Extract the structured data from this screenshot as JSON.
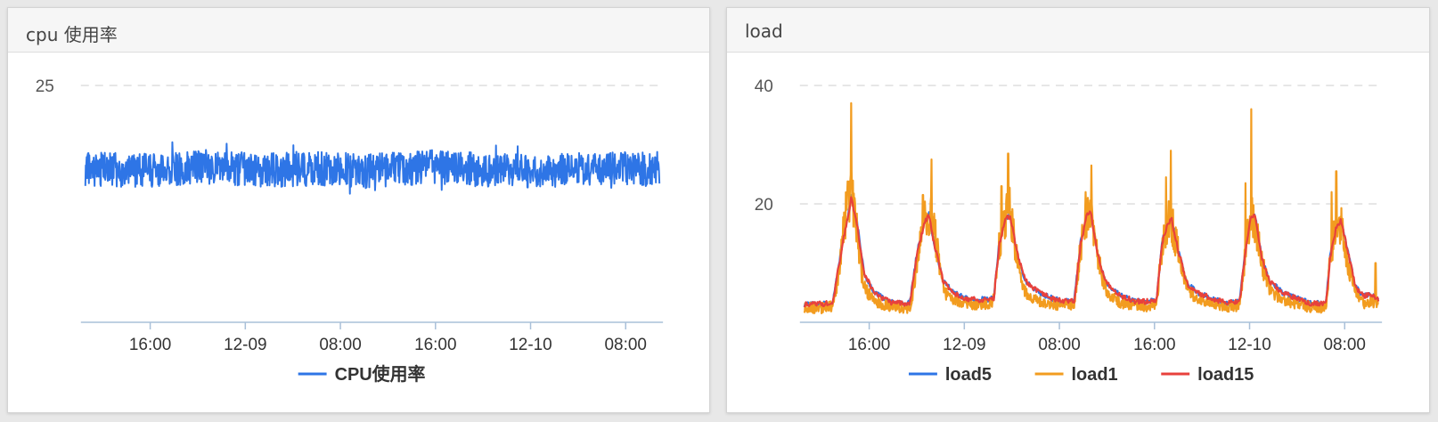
{
  "panels": [
    {
      "title": "cpu 使用率",
      "chart_data": {
        "type": "line",
        "x_ticks": [
          "16:00",
          "12-09",
          "08:00",
          "16:00",
          "12-10",
          "08:00"
        ],
        "y_ticks": [
          25
        ],
        "ylim": [
          0,
          25
        ],
        "grid": "horizontal dashed",
        "legend_position": "bottom",
        "series": [
          {
            "name": "CPU使用率",
            "color": "#2e75e6",
            "noisy": true,
            "baseline": [
              [
                0,
                16.2
              ],
              [
                6,
                16.0
              ],
              [
                12,
                16.3
              ],
              [
                18,
                16.1
              ],
              [
                24,
                16.2
              ],
              [
                30,
                16.0
              ],
              [
                36,
                16.4
              ],
              [
                42,
                16.1
              ],
              [
                48,
                16.0
              ],
              [
                54,
                16.2
              ],
              [
                60,
                16.1
              ]
            ],
            "amplitude": 1.8
          }
        ]
      }
    },
    {
      "title": "load",
      "chart_data": {
        "type": "line",
        "x_ticks": [
          "16:00",
          "12-09",
          "08:00",
          "16:00",
          "12-10",
          "08:00"
        ],
        "y_ticks": [
          20,
          40
        ],
        "ylim": [
          0,
          40
        ],
        "grid": "horizontal dashed",
        "legend_position": "bottom",
        "series": [
          {
            "name": "load5",
            "color": "#2e75e6",
            "points": [
              [
                0,
                3
              ],
              [
                2,
                3.1
              ],
              [
                3,
                3.5
              ],
              [
                4,
                14
              ],
              [
                4.6,
                18
              ],
              [
                4.9,
                21.5
              ],
              [
                5.5,
                17
              ],
              [
                6.3,
                8
              ],
              [
                7.3,
                5
              ],
              [
                8.3,
                4
              ],
              [
                9,
                3.4
              ],
              [
                10,
                3.2
              ],
              [
                11,
                3.2
              ],
              [
                11.8,
                12
              ],
              [
                12.6,
                17.5
              ],
              [
                13,
                18.5
              ],
              [
                13.6,
                13
              ],
              [
                14.5,
                7
              ],
              [
                15.6,
                5
              ],
              [
                17,
                4
              ],
              [
                18,
                3.8
              ],
              [
                19.8,
                4
              ],
              [
                20.4,
                14
              ],
              [
                21,
                17.5
              ],
              [
                21.5,
                18.5
              ],
              [
                22.2,
                12
              ],
              [
                23.1,
                7
              ],
              [
                24.5,
                5
              ],
              [
                26,
                4
              ],
              [
                27,
                3.5
              ],
              [
                28.2,
                3.6
              ],
              [
                28.9,
                14
              ],
              [
                29.5,
                18
              ],
              [
                29.9,
                19
              ],
              [
                30.6,
                12
              ],
              [
                31.4,
                7
              ],
              [
                33,
                4.5
              ],
              [
                34.5,
                3.6
              ],
              [
                36,
                3.5
              ],
              [
                36.8,
                3.6
              ],
              [
                37.4,
                14
              ],
              [
                38,
                17
              ],
              [
                38.4,
                17.5
              ],
              [
                39.1,
                12
              ],
              [
                40,
                6.5
              ],
              [
                41.2,
                5
              ],
              [
                42.5,
                4
              ],
              [
                44,
                3.3
              ],
              [
                45.5,
                3.5
              ],
              [
                46.2,
                14
              ],
              [
                46.7,
                18
              ],
              [
                47.1,
                18
              ],
              [
                47.8,
                11
              ],
              [
                48.6,
                7
              ],
              [
                50,
                5
              ],
              [
                51.5,
                4
              ],
              [
                53,
                3.2
              ],
              [
                54.5,
                3.2
              ],
              [
                55,
                12
              ],
              [
                55.6,
                16.5
              ],
              [
                56.1,
                17.5
              ],
              [
                56.8,
                12
              ],
              [
                57.6,
                6
              ],
              [
                58.4,
                4.5
              ],
              [
                59,
                4.6
              ],
              [
                59.5,
                4.3
              ],
              [
                60,
                4
              ]
            ]
          },
          {
            "name": "load1",
            "color": "#f29c1f",
            "noisy": true,
            "amplitude": 2.6,
            "spikes": [
              [
                4.9,
                37
              ],
              [
                13.3,
                27.5
              ],
              [
                21.3,
                28.5
              ],
              [
                30,
                26.5
              ],
              [
                38.3,
                29
              ],
              [
                46.7,
                36
              ],
              [
                55.6,
                25.5
              ],
              [
                4.4,
                19
              ],
              [
                12.4,
                21.5
              ],
              [
                20.6,
                23
              ],
              [
                29.4,
                22
              ],
              [
                37.8,
                24.5
              ],
              [
                46.1,
                23.5
              ],
              [
                55.1,
                22
              ],
              [
                59.7,
                10
              ]
            ],
            "points": [
              [
                0,
                2.5
              ],
              [
                2,
                2.4
              ],
              [
                3,
                2.8
              ],
              [
                3.6,
                8
              ],
              [
                4.2,
                17
              ],
              [
                4.9,
                23
              ],
              [
                5.5,
                15
              ],
              [
                6.2,
                6
              ],
              [
                7.3,
                3.5
              ],
              [
                8.3,
                3
              ],
              [
                10,
                2.4
              ],
              [
                11.2,
                2.5
              ],
              [
                11.8,
                11
              ],
              [
                12.6,
                17
              ],
              [
                13.3,
                19
              ],
              [
                13.9,
                12
              ],
              [
                14.6,
                5
              ],
              [
                16,
                3.5
              ],
              [
                18,
                3
              ],
              [
                19.7,
                3
              ],
              [
                20.3,
                12
              ],
              [
                21,
                18
              ],
              [
                21.5,
                19
              ],
              [
                22.2,
                11
              ],
              [
                23.1,
                5
              ],
              [
                24.5,
                3.5
              ],
              [
                27,
                2.8
              ],
              [
                28.2,
                2.9
              ],
              [
                28.9,
                13
              ],
              [
                29.6,
                18.5
              ],
              [
                30.1,
                17
              ],
              [
                30.8,
                10
              ],
              [
                31.6,
                5
              ],
              [
                33,
                3.3
              ],
              [
                36,
                2.6
              ],
              [
                36.8,
                2.8
              ],
              [
                37.4,
                13
              ],
              [
                38.2,
                18
              ],
              [
                38.7,
                15
              ],
              [
                39.4,
                9
              ],
              [
                40.2,
                5
              ],
              [
                42,
                3.2
              ],
              [
                44,
                2.6
              ],
              [
                45.5,
                2.8
              ],
              [
                46.2,
                13
              ],
              [
                46.8,
                19
              ],
              [
                47.3,
                15
              ],
              [
                48,
                9
              ],
              [
                48.8,
                5
              ],
              [
                50.5,
                3.4
              ],
              [
                53,
                2.5
              ],
              [
                54.5,
                2.5
              ],
              [
                55,
                11
              ],
              [
                55.6,
                17
              ],
              [
                56.2,
                16
              ],
              [
                56.9,
                9
              ],
              [
                57.7,
                4.5
              ],
              [
                58.5,
                3.2
              ],
              [
                59.3,
                3.5
              ],
              [
                59.8,
                3
              ],
              [
                60,
                2.8
              ]
            ]
          },
          {
            "name": "load15",
            "color": "#e8413c",
            "points": [
              [
                0,
                3
              ],
              [
                2,
                3.1
              ],
              [
                3,
                3.4
              ],
              [
                4,
                13.5
              ],
              [
                4.6,
                18
              ],
              [
                4.9,
                21
              ],
              [
                5.5,
                16.5
              ],
              [
                6.3,
                8
              ],
              [
                7.3,
                5
              ],
              [
                8.3,
                4
              ],
              [
                9,
                3.4
              ],
              [
                10,
                3.2
              ],
              [
                11,
                3.2
              ],
              [
                11.8,
                11.5
              ],
              [
                12.6,
                17
              ],
              [
                13,
                18.2
              ],
              [
                13.6,
                13
              ],
              [
                14.5,
                7
              ],
              [
                15.6,
                5
              ],
              [
                17,
                4
              ],
              [
                18,
                3.8
              ],
              [
                19.8,
                4
              ],
              [
                20.4,
                13.5
              ],
              [
                21,
                17.2
              ],
              [
                21.5,
                18.2
              ],
              [
                22.2,
                12
              ],
              [
                23.1,
                7
              ],
              [
                24.5,
                5
              ],
              [
                26,
                4
              ],
              [
                27,
                3.5
              ],
              [
                28.2,
                3.6
              ],
              [
                28.9,
                13.5
              ],
              [
                29.5,
                17.8
              ],
              [
                29.9,
                18.8
              ],
              [
                30.6,
                12
              ],
              [
                31.4,
                7
              ],
              [
                33,
                4.5
              ],
              [
                34.5,
                3.6
              ],
              [
                36,
                3.5
              ],
              [
                36.8,
                3.6
              ],
              [
                37.4,
                13.5
              ],
              [
                38,
                16.8
              ],
              [
                38.4,
                17.3
              ],
              [
                39.1,
                12
              ],
              [
                40,
                6.5
              ],
              [
                41.2,
                5
              ],
              [
                42.5,
                4
              ],
              [
                44,
                3.3
              ],
              [
                45.5,
                3.5
              ],
              [
                46.2,
                13.5
              ],
              [
                46.7,
                17.8
              ],
              [
                47.1,
                17.8
              ],
              [
                47.8,
                11
              ],
              [
                48.6,
                7
              ],
              [
                50,
                5
              ],
              [
                51.5,
                4
              ],
              [
                53,
                3.2
              ],
              [
                54.5,
                3.2
              ],
              [
                55,
                11.5
              ],
              [
                55.6,
                16.2
              ],
              [
                56.1,
                17.2
              ],
              [
                56.8,
                12
              ],
              [
                57.6,
                6
              ],
              [
                58.4,
                4.5
              ],
              [
                59,
                4.5
              ],
              [
                59.5,
                4.2
              ],
              [
                60,
                3.9
              ]
            ]
          }
        ]
      }
    }
  ]
}
